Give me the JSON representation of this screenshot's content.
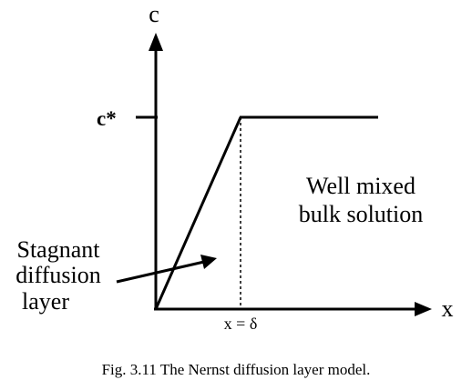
{
  "diagram": {
    "axis_y_label": "c",
    "axis_x_label": "x",
    "y_tick_label": "c*",
    "x_tick_label": "x = δ",
    "bulk_label_line1": "Well mixed",
    "bulk_label_line2": "bulk solution",
    "layer_label_line1": "Stagnant",
    "layer_label_line2": "diffusion",
    "layer_label_line3": "layer",
    "caption": "Fig. 3.11  The Nernst diffusion layer model.",
    "color": "#000000"
  }
}
